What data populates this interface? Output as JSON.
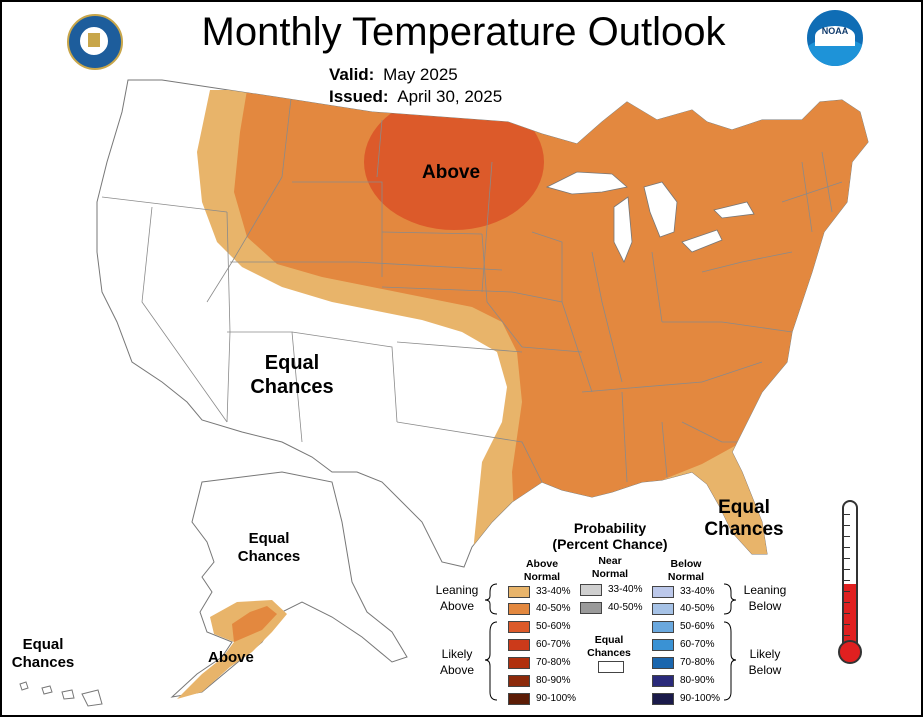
{
  "title": "Monthly Temperature Outlook",
  "valid": {
    "label": "Valid:",
    "value": "May 2025"
  },
  "issued": {
    "label": "Issued:",
    "value": "April 30, 2025"
  },
  "logos": {
    "left": "department-of-commerce-seal",
    "right": "noaa-logo"
  },
  "labels": {
    "above_main": "Above",
    "equal_chances_west": [
      "Equal",
      "Chances"
    ],
    "equal_chances_florida": [
      "Equal",
      "Chances"
    ],
    "equal_chances_alaska": [
      "Equal",
      "Chances"
    ],
    "above_alaska": "Above",
    "equal_chances_hawaii": [
      "Equal",
      "Chances"
    ]
  },
  "legend": {
    "title_line1": "Probability",
    "title_line2": "(Percent Chance)",
    "above_header": [
      "Above",
      "Normal"
    ],
    "near_header": [
      "Near",
      "Normal"
    ],
    "below_header": [
      "Below",
      "Normal"
    ],
    "leaning_above": [
      "Leaning",
      "Above"
    ],
    "likely_above": [
      "Likely",
      "Above"
    ],
    "leaning_below": [
      "Leaning",
      "Below"
    ],
    "likely_below": [
      "Likely",
      "Below"
    ],
    "equal_chances": [
      "Equal",
      "Chances"
    ],
    "above": [
      {
        "label": "33-40%",
        "color": "#e8b46a"
      },
      {
        "label": "40-50%",
        "color": "#e3883f"
      },
      {
        "label": "50-60%",
        "color": "#dc5a2a"
      },
      {
        "label": "60-70%",
        "color": "#cc3a1a"
      },
      {
        "label": "70-80%",
        "color": "#b0300e"
      },
      {
        "label": "80-90%",
        "color": "#8c2a0b"
      },
      {
        "label": "90-100%",
        "color": "#5c1c06"
      }
    ],
    "near": [
      {
        "label": "33-40%",
        "color": "#cfcfcf"
      },
      {
        "label": "40-50%",
        "color": "#9a9a9a"
      }
    ],
    "below": [
      {
        "label": "33-40%",
        "color": "#bcc8ea"
      },
      {
        "label": "40-50%",
        "color": "#a6c2e6"
      },
      {
        "label": "50-60%",
        "color": "#6aa8de"
      },
      {
        "label": "60-70%",
        "color": "#3a92d4"
      },
      {
        "label": "70-80%",
        "color": "#1a66ae"
      },
      {
        "label": "80-90%",
        "color": "#2a2a7a"
      },
      {
        "label": "90-100%",
        "color": "#1a1a4a"
      }
    ]
  },
  "thermometer": {
    "fill_fraction": 0.45,
    "fill_color": "#e02020"
  }
}
